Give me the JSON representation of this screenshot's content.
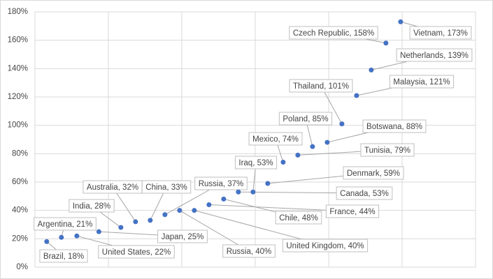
{
  "chart_data": {
    "type": "scatter",
    "x": [
      0.16,
      0.36,
      0.57,
      0.87,
      1.17,
      1.37,
      1.57,
      1.77,
      1.97,
      2.17,
      2.37,
      2.57,
      2.77,
      2.97,
      3.17,
      3.38,
      3.58,
      3.78,
      3.98,
      4.18,
      4.38,
      4.58,
      4.78,
      4.98
    ],
    "values": [
      18,
      21,
      22,
      25,
      28,
      32,
      33,
      37,
      40,
      40,
      44,
      48,
      53,
      53,
      59,
      74,
      79,
      85,
      88,
      101,
      121,
      139,
      158,
      173
    ],
    "value_labels": [
      "Brazil, 18%",
      "Argentina, 21%",
      "United States, 22%",
      "Japan, 25%",
      "India, 28%",
      "Australia, 32%",
      "China, 33%",
      "Russia, 37%",
      "Russia, 40%",
      "United Kingdom, 40%",
      "France, 44%",
      "Chile, 48%",
      "Canada, 53%",
      "Iraq, 53%",
      "Denmark, 59%",
      "Mexico, 74%",
      "Tunisia, 79%",
      "Poland, 85%",
      "Botswana, 88%",
      "Thailand, 101%",
      "Malaysia, 121%",
      "Netherlands, 139%",
      "Czech Republic, 158%",
      "Vietnam, 173%"
    ],
    "color": "#4472c4",
    "xlim": [
      0,
      6
    ],
    "xticks": [
      0,
      1,
      2,
      3,
      4,
      5,
      6
    ],
    "ylim": [
      0,
      180
    ],
    "yticks": [
      {
        "value": 0,
        "label": "0%"
      },
      {
        "value": 20,
        "label": "20%"
      },
      {
        "value": 40,
        "label": "40%"
      },
      {
        "value": 60,
        "label": "60%"
      },
      {
        "value": 80,
        "label": "80%"
      },
      {
        "value": 100,
        "label": "100%"
      },
      {
        "value": 120,
        "label": "120%"
      },
      {
        "value": 140,
        "label": "140%"
      },
      {
        "value": 160,
        "label": "160%"
      },
      {
        "value": 180,
        "label": "180%"
      }
    ],
    "grid": true
  }
}
